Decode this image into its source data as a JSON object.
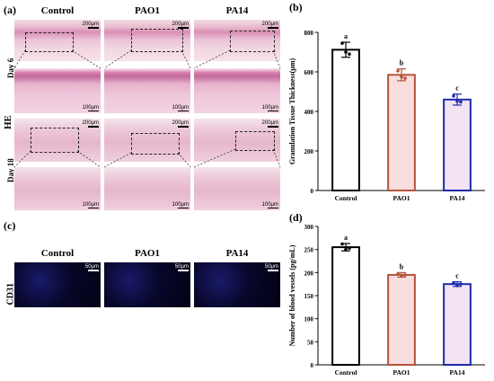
{
  "panel_a": {
    "letter": "(a)",
    "columns": [
      "Control",
      "PAO1",
      "PA14"
    ],
    "rows": [
      "Day 6",
      "Day 18"
    ],
    "stain": "HE",
    "scale_low": "200μm",
    "scale_high": "100μm"
  },
  "panel_c": {
    "letter": "(c)",
    "columns": [
      "Control",
      "PAO1",
      "PA14"
    ],
    "stain": "CD31",
    "scale": "50μm"
  },
  "chart_data": [
    {
      "panel": "(b)",
      "type": "bar",
      "categories": [
        "Control",
        "PAO1",
        "PA14"
      ],
      "values": [
        712,
        585,
        460
      ],
      "errors": [
        38,
        30,
        28
      ],
      "points": [
        [
          745,
          700,
          690
        ],
        [
          605,
          575,
          568
        ],
        [
          478,
          452,
          448
        ]
      ],
      "significance": [
        "a",
        "b",
        "c"
      ],
      "colors": [
        "#000000",
        "#b5533c",
        "#1f2bab"
      ],
      "fill_colors": [
        "#ffffff",
        "#f8dede",
        "#f3e3f3"
      ],
      "ylabel": "Granulation Tissue Thickness(μm)",
      "ylim": [
        0,
        800
      ],
      "yticks": [
        0,
        200,
        400,
        600,
        800
      ],
      "grid": false
    },
    {
      "panel": "(d)",
      "type": "bar",
      "categories": [
        "Control",
        "PAO1",
        "PA14"
      ],
      "values": [
        255,
        195,
        175
      ],
      "errors": [
        8,
        5,
        5
      ],
      "points": [
        [
          262,
          250,
          253
        ],
        [
          197,
          193,
          195
        ],
        [
          178,
          172,
          175
        ]
      ],
      "significance": [
        "a",
        "b",
        "c"
      ],
      "colors": [
        "#000000",
        "#b5533c",
        "#1f2bab"
      ],
      "fill_colors": [
        "#ffffff",
        "#f8dede",
        "#f3e3f3"
      ],
      "ylabel": "Number of blood vessels (pg/mL)",
      "ylim": [
        0,
        300
      ],
      "yticks": [
        0,
        50,
        100,
        150,
        200,
        250,
        300
      ],
      "grid": false
    }
  ]
}
